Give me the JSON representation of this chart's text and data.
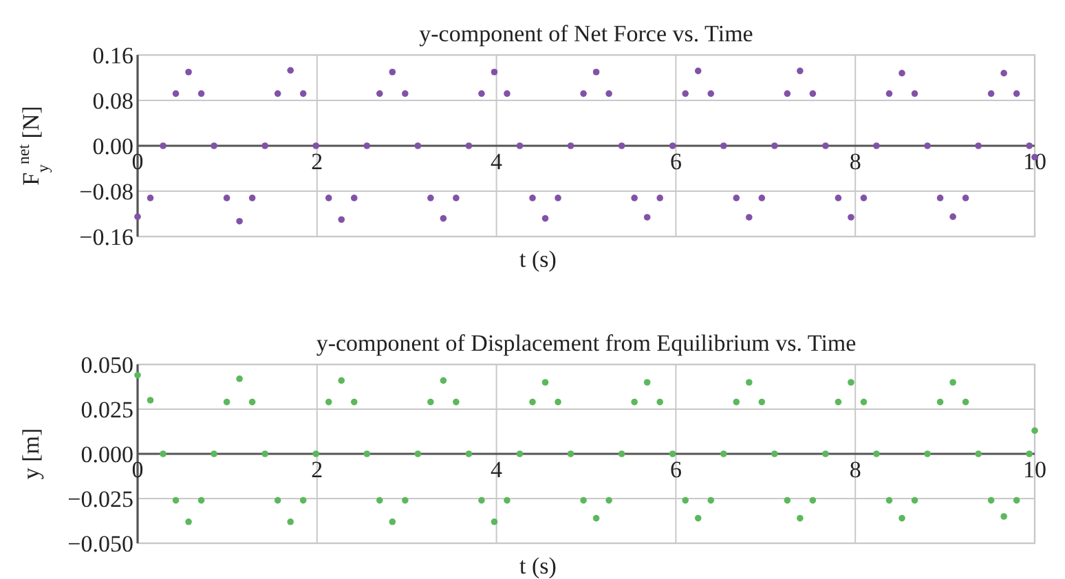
{
  "chart_data": [
    {
      "type": "scatter",
      "title": "y-component of Net Force vs. Time",
      "xlabel": "t (s)",
      "ylabel": "F$_{y}$$^{net}$ [N]",
      "xlim": [
        0,
        10
      ],
      "xticks": [
        0,
        2,
        4,
        6,
        8,
        10
      ],
      "ylim": [
        -0.16,
        0.16
      ],
      "yticks": [
        {
          "value": -0.16,
          "label": "−0.16"
        },
        {
          "value": -0.08,
          "label": "−0.08"
        },
        {
          "value": 0,
          "label": "0.00"
        },
        {
          "value": 0.08,
          "label": "0.08"
        },
        {
          "value": 0.16,
          "label": "0.16"
        }
      ],
      "grid": true,
      "marker": "circle",
      "x": [
        0,
        0.142,
        0.284,
        0.426,
        0.568,
        0.71,
        0.852,
        0.994,
        1.136,
        1.278,
        1.42,
        1.562,
        1.704,
        1.846,
        1.988,
        2.13,
        2.272,
        2.414,
        2.556,
        2.698,
        2.84,
        2.982,
        3.124,
        3.266,
        3.408,
        3.55,
        3.692,
        3.834,
        3.976,
        4.118,
        4.26,
        4.402,
        4.544,
        4.686,
        4.828,
        4.97,
        5.112,
        5.254,
        5.396,
        5.538,
        5.68,
        5.822,
        5.964,
        6.106,
        6.248,
        6.39,
        6.532,
        6.674,
        6.816,
        6.958,
        7.1,
        7.242,
        7.384,
        7.526,
        7.668,
        7.81,
        7.952,
        8.094,
        8.236,
        8.378,
        8.52,
        8.662,
        8.804,
        8.946,
        9.088,
        9.23,
        9.372,
        9.514,
        9.656,
        9.798,
        9.94,
        10
      ],
      "series": [
        {
          "color": "#8152a8",
          "values": [
            -0.125,
            -0.092,
            0,
            0.092,
            0.13,
            0.092,
            0,
            -0.092,
            -0.133,
            -0.092,
            0,
            0.092,
            0.133,
            0.092,
            0,
            -0.092,
            -0.13,
            -0.092,
            0,
            0.092,
            0.13,
            0.092,
            0,
            -0.092,
            -0.128,
            -0.092,
            0,
            0.092,
            0.13,
            0.092,
            0,
            -0.092,
            -0.128,
            -0.092,
            0,
            0.092,
            0.13,
            0.092,
            0,
            -0.092,
            -0.126,
            -0.092,
            0,
            0.092,
            0.132,
            0.092,
            0,
            -0.092,
            -0.126,
            -0.092,
            0,
            0.092,
            0.132,
            0.092,
            0,
            -0.092,
            -0.126,
            -0.092,
            0,
            0.092,
            0.128,
            0.092,
            0,
            -0.092,
            -0.125,
            -0.092,
            0,
            0.092,
            0.128,
            0.092,
            0,
            -0.02
          ]
        }
      ]
    },
    {
      "type": "scatter",
      "title": "y-component of Displacement from Equilibrium vs. Time",
      "xlabel": "t (s)",
      "ylabel": "y [m]",
      "xlim": [
        0,
        10
      ],
      "xticks": [
        0,
        2,
        4,
        6,
        8,
        10
      ],
      "ylim": [
        -0.05,
        0.05
      ],
      "yticks": [
        {
          "value": -0.05,
          "label": "−0.050"
        },
        {
          "value": -0.025,
          "label": "−0.025"
        },
        {
          "value": 0,
          "label": "0.000"
        },
        {
          "value": 0.025,
          "label": "0.025"
        },
        {
          "value": 0.05,
          "label": "0.050"
        }
      ],
      "grid": true,
      "marker": "circle",
      "x": [
        0,
        0.142,
        0.284,
        0.426,
        0.568,
        0.71,
        0.852,
        0.994,
        1.136,
        1.278,
        1.42,
        1.562,
        1.704,
        1.846,
        1.988,
        2.13,
        2.272,
        2.414,
        2.556,
        2.698,
        2.84,
        2.982,
        3.124,
        3.266,
        3.408,
        3.55,
        3.692,
        3.834,
        3.976,
        4.118,
        4.26,
        4.402,
        4.544,
        4.686,
        4.828,
        4.97,
        5.112,
        5.254,
        5.396,
        5.538,
        5.68,
        5.822,
        5.964,
        6.106,
        6.248,
        6.39,
        6.532,
        6.674,
        6.816,
        6.958,
        7.1,
        7.242,
        7.384,
        7.526,
        7.668,
        7.81,
        7.952,
        8.094,
        8.236,
        8.378,
        8.52,
        8.662,
        8.804,
        8.946,
        9.088,
        9.23,
        9.372,
        9.514,
        9.656,
        9.798,
        9.94,
        10
      ],
      "series": [
        {
          "color": "#5cb85c",
          "values": [
            0.044,
            0.03,
            0,
            -0.026,
            -0.038,
            -0.026,
            0,
            0.029,
            0.042,
            0.029,
            0,
            -0.026,
            -0.038,
            -0.026,
            0,
            0.029,
            0.041,
            0.029,
            0,
            -0.026,
            -0.038,
            -0.026,
            0,
            0.029,
            0.041,
            0.029,
            0,
            -0.026,
            -0.038,
            -0.026,
            0,
            0.029,
            0.04,
            0.029,
            0,
            -0.026,
            -0.036,
            -0.026,
            0,
            0.029,
            0.04,
            0.029,
            0,
            -0.026,
            -0.036,
            -0.026,
            0,
            0.029,
            0.04,
            0.029,
            0,
            -0.026,
            -0.036,
            -0.026,
            0,
            0.029,
            0.04,
            0.029,
            0,
            -0.026,
            -0.036,
            -0.026,
            0,
            0.029,
            0.04,
            0.029,
            0,
            -0.026,
            -0.035,
            -0.026,
            0,
            0.013
          ]
        }
      ]
    }
  ]
}
